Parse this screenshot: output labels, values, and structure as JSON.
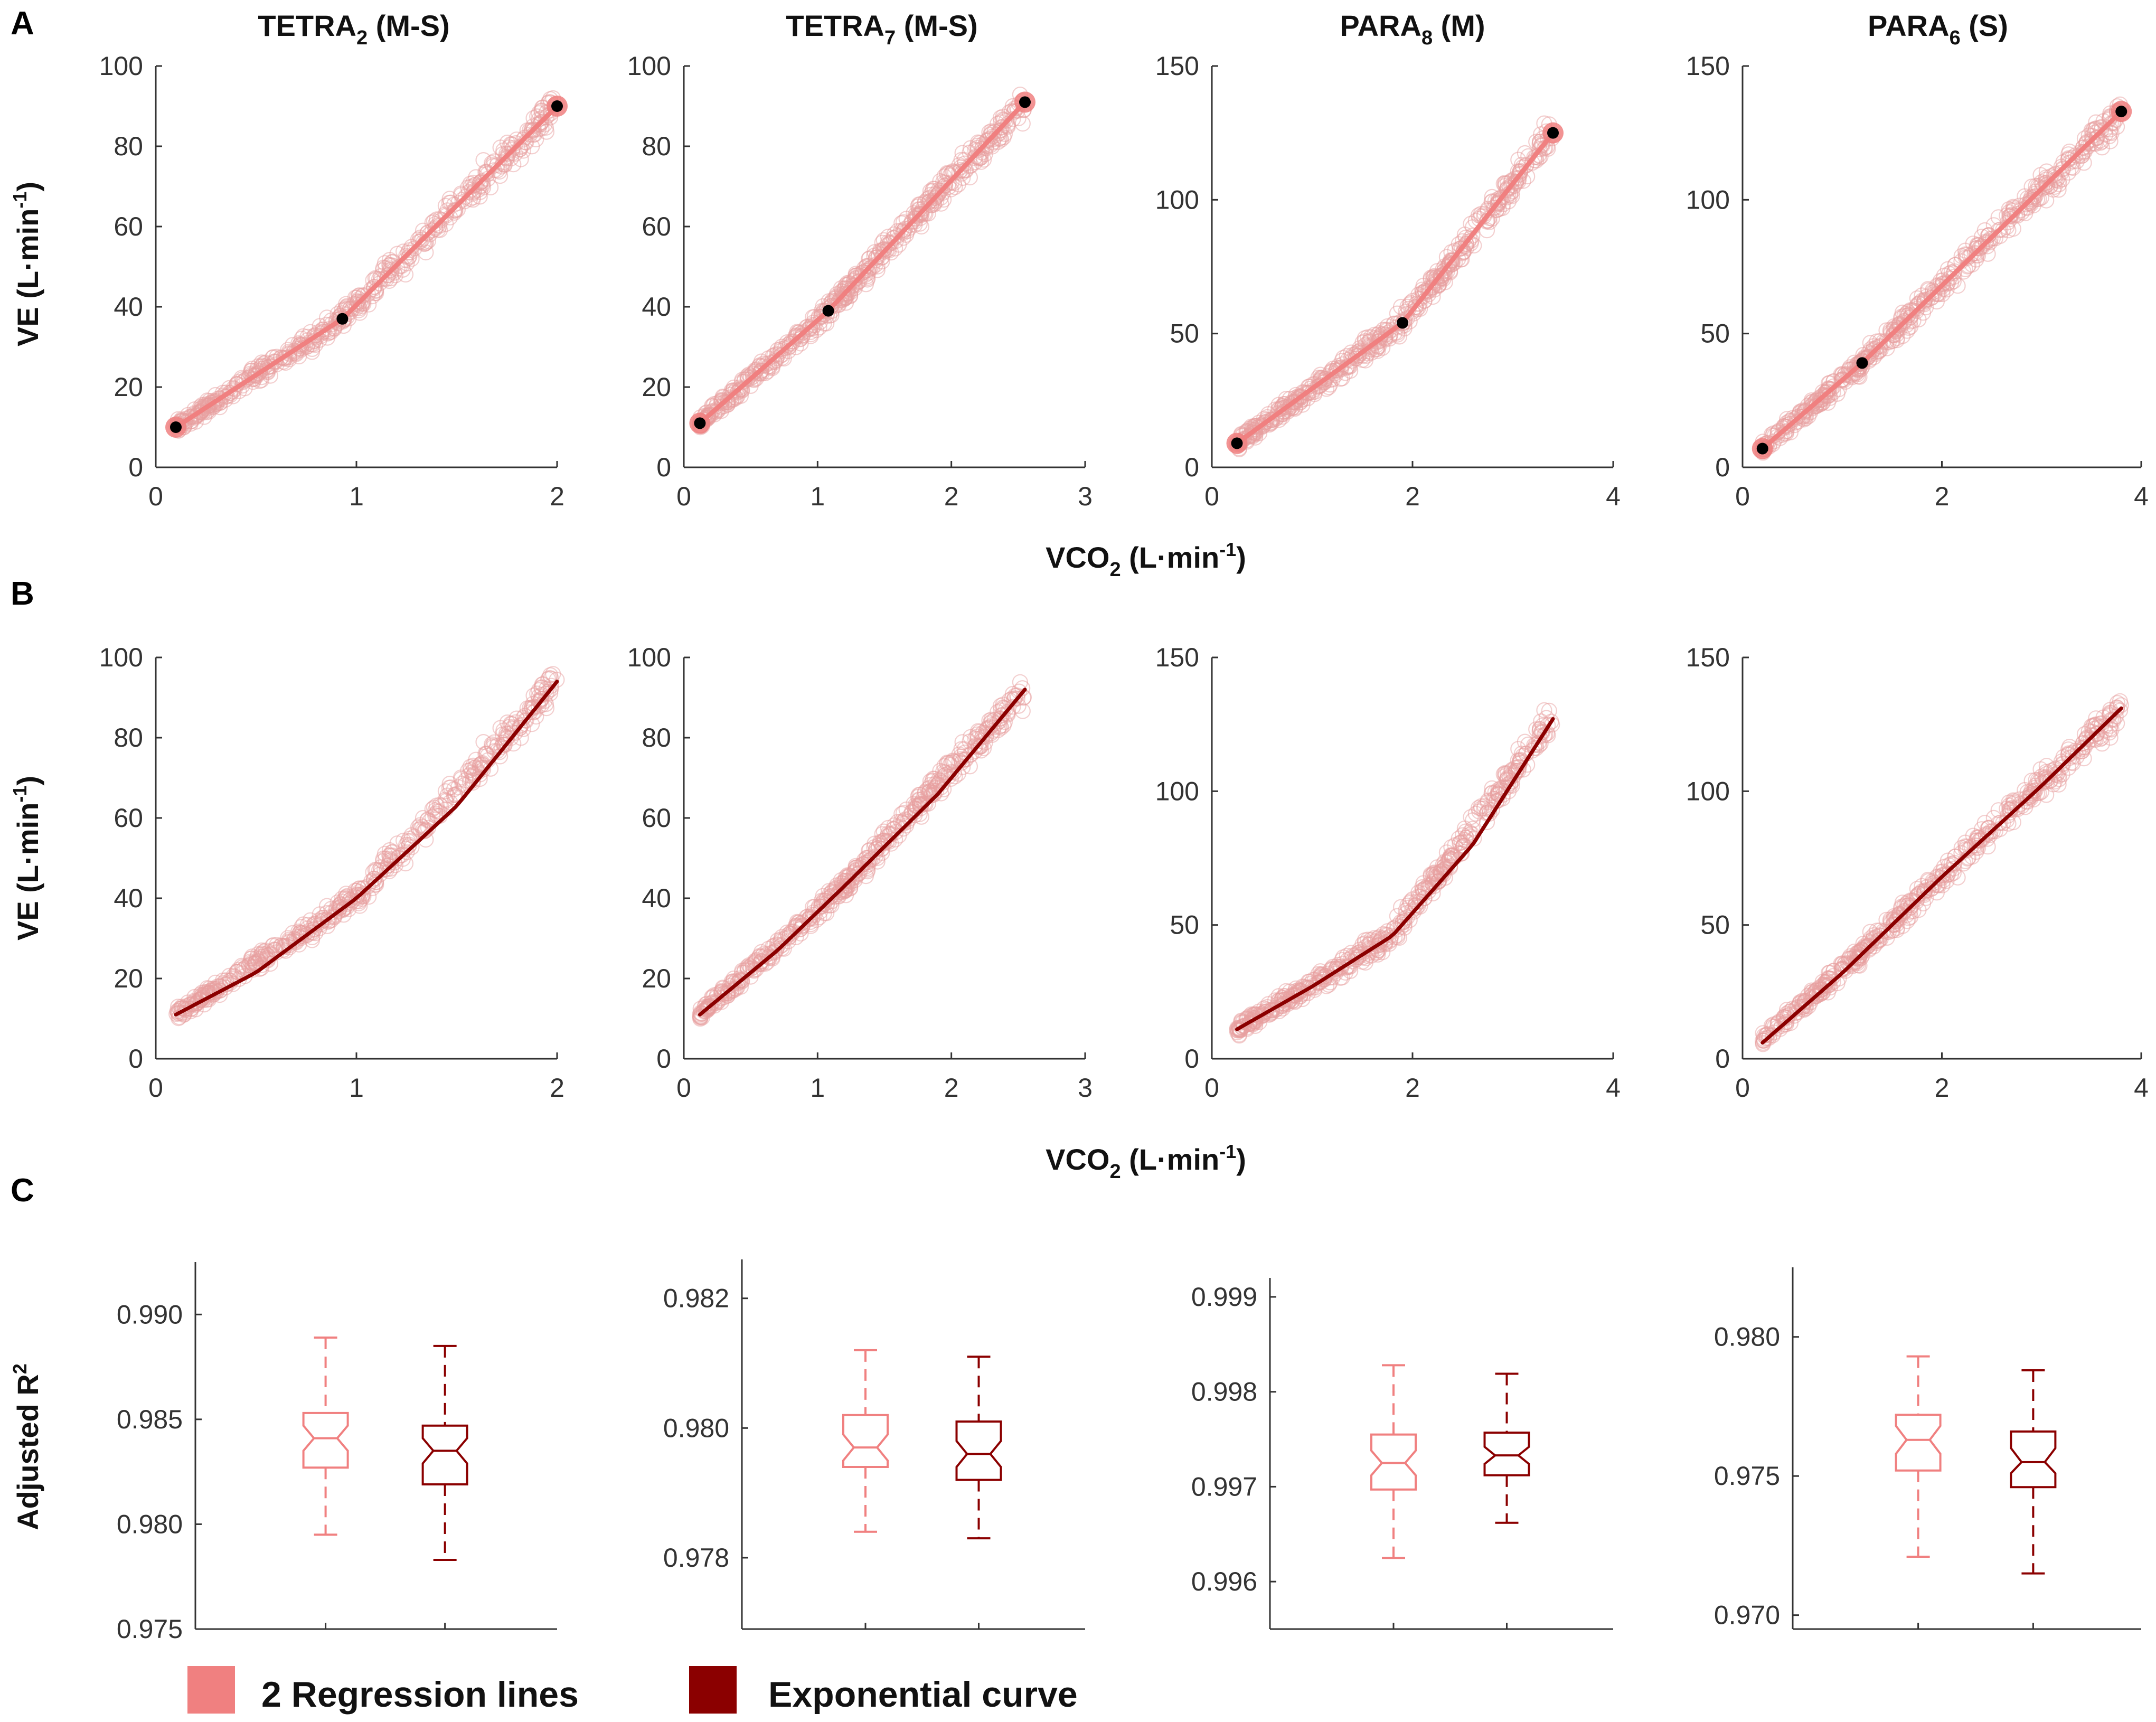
{
  "panel_letters": [
    "A",
    "B",
    "C"
  ],
  "subjects": [
    {
      "name": "TETRA",
      "sub": "2",
      "tag": " (M-S)"
    },
    {
      "name": "TETRA",
      "sub": "7",
      "tag": " (M-S)"
    },
    {
      "name": "PARA",
      "sub": "8",
      "tag": " (M)"
    },
    {
      "name": "PARA",
      "sub": "6",
      "tag": " (S)"
    }
  ],
  "labels": {
    "ve_main": "VE (L·min",
    "ve_sup": "-1",
    "ve_close": ")",
    "vco2_main": "VCO",
    "vco2_sub": "2",
    "vco2_rest": " (L·min",
    "vco2_sup": "-1",
    "vco2_close": ")",
    "r2_main": "Adjusted R",
    "r2_sup": "2"
  },
  "legend": [
    {
      "label": "2 Regression lines",
      "color": "#f08080"
    },
    {
      "label": "Exponential curve",
      "color": "#8b0000"
    }
  ],
  "colors": {
    "regression": "#f08080",
    "exponential": "#8b0000",
    "scatter": "#e8a0a0",
    "axis": "#333333",
    "breakpoint": "#000000"
  },
  "chart_data": [
    {
      "type": "scatter",
      "panel": "A",
      "subject": "TETRA2 (M-S)",
      "xlim": [
        0,
        2
      ],
      "ylim": [
        0,
        100
      ],
      "xticks": [
        "0",
        "1",
        "2"
      ],
      "yticks": [
        "0",
        "20",
        "40",
        "60",
        "80",
        "100"
      ],
      "xlabel": "VCO2 (L·min-1)",
      "ylabel": "VE (L·min-1)",
      "cloud": {
        "x_range": [
          0.1,
          2.0
        ],
        "pts": [
          [
            0.1,
            10
          ],
          [
            0.93,
            37
          ],
          [
            2.0,
            90
          ]
        ]
      },
      "regression_lines": [
        [
          [
            0.1,
            10
          ],
          [
            0.93,
            37
          ]
        ],
        [
          [
            0.93,
            37
          ],
          [
            2.0,
            90
          ]
        ]
      ],
      "breakpoints": [
        [
          0.1,
          10
        ],
        [
          0.93,
          37
        ],
        [
          2.0,
          90
        ]
      ]
    },
    {
      "type": "scatter",
      "panel": "A",
      "subject": "TETRA7 (M-S)",
      "xlim": [
        0,
        3
      ],
      "ylim": [
        0,
        100
      ],
      "xticks": [
        "0",
        "1",
        "2",
        "3"
      ],
      "yticks": [
        "0",
        "20",
        "40",
        "60",
        "80",
        "100"
      ],
      "xlabel": "VCO2 (L·min-1)",
      "ylabel": "VE (L·min-1)",
      "cloud": {
        "x_range": [
          0.12,
          2.55
        ],
        "pts": [
          [
            0.12,
            11
          ],
          [
            1.08,
            39
          ],
          [
            2.55,
            91
          ]
        ]
      },
      "regression_lines": [
        [
          [
            0.12,
            11
          ],
          [
            1.08,
            39
          ]
        ],
        [
          [
            1.08,
            39
          ],
          [
            2.55,
            91
          ]
        ]
      ],
      "breakpoints": [
        [
          0.12,
          11
        ],
        [
          1.08,
          39
        ],
        [
          2.55,
          91
        ]
      ]
    },
    {
      "type": "scatter",
      "panel": "A",
      "subject": "PARA8 (M)",
      "xlim": [
        0,
        4
      ],
      "ylim": [
        0,
        150
      ],
      "xticks": [
        "0",
        "2",
        "4"
      ],
      "yticks": [
        "0",
        "50",
        "100",
        "150"
      ],
      "xlabel": "VCO2 (L·min-1)",
      "ylabel": "VE (L·min-1)",
      "cloud": {
        "x_range": [
          0.25,
          3.4
        ],
        "pts": [
          [
            0.25,
            9
          ],
          [
            1.9,
            54
          ],
          [
            3.4,
            125
          ]
        ]
      },
      "regression_lines": [
        [
          [
            0.25,
            9
          ],
          [
            1.9,
            54
          ]
        ],
        [
          [
            1.9,
            54
          ],
          [
            3.4,
            125
          ]
        ]
      ],
      "breakpoints": [
        [
          0.25,
          9
        ],
        [
          1.9,
          54
        ],
        [
          3.4,
          125
        ]
      ]
    },
    {
      "type": "scatter",
      "panel": "A",
      "subject": "PARA6 (S)",
      "xlim": [
        0,
        4
      ],
      "ylim": [
        0,
        150
      ],
      "xticks": [
        "0",
        "2",
        "4"
      ],
      "yticks": [
        "0",
        "50",
        "100",
        "150"
      ],
      "xlabel": "VCO2 (L·min-1)",
      "ylabel": "VE (L·min-1)",
      "cloud": {
        "x_range": [
          0.2,
          3.8
        ],
        "pts": [
          [
            0.2,
            7
          ],
          [
            1.2,
            39
          ],
          [
            3.8,
            133
          ]
        ]
      },
      "regression_lines": [
        [
          [
            0.2,
            7
          ],
          [
            1.2,
            39
          ]
        ],
        [
          [
            1.2,
            39
          ],
          [
            3.8,
            133
          ]
        ]
      ],
      "breakpoints": [
        [
          0.2,
          7
        ],
        [
          1.2,
          39
        ],
        [
          3.8,
          133
        ]
      ]
    },
    {
      "type": "scatter",
      "panel": "B",
      "subject": "TETRA2 (M-S)",
      "xlim": [
        0,
        2
      ],
      "ylim": [
        0,
        100
      ],
      "xticks": [
        "0",
        "1",
        "2"
      ],
      "yticks": [
        "0",
        "20",
        "40",
        "60",
        "80",
        "100"
      ],
      "xlabel": "VCO2 (L·min-1)",
      "ylabel": "VE (L·min-1)",
      "cloud": {
        "x_range": [
          0.1,
          2.0
        ],
        "pts": [
          [
            0.1,
            11
          ],
          [
            1.0,
            40
          ],
          [
            2.0,
            94
          ]
        ]
      },
      "exponential_curve": [
        [
          0.1,
          11
        ],
        [
          0.5,
          21.5
        ],
        [
          1.0,
          40
        ],
        [
          1.5,
          63
        ],
        [
          2.0,
          94
        ]
      ]
    },
    {
      "type": "scatter",
      "panel": "B",
      "subject": "TETRA7 (M-S)",
      "xlim": [
        0,
        3
      ],
      "ylim": [
        0,
        100
      ],
      "xticks": [
        "0",
        "1",
        "2",
        "3"
      ],
      "yticks": [
        "0",
        "20",
        "40",
        "60",
        "80",
        "100"
      ],
      "xlabel": "VCO2 (L·min-1)",
      "ylabel": "VE (L·min-1)",
      "cloud": {
        "x_range": [
          0.12,
          2.55
        ],
        "pts": [
          [
            0.12,
            11
          ],
          [
            1.2,
            43
          ],
          [
            2.55,
            92
          ]
        ]
      },
      "exponential_curve": [
        [
          0.12,
          11
        ],
        [
          0.7,
          27
        ],
        [
          1.2,
          43
        ],
        [
          1.9,
          66
        ],
        [
          2.55,
          92
        ]
      ]
    },
    {
      "type": "scatter",
      "panel": "B",
      "subject": "PARA8 (M)",
      "xlim": [
        0,
        4
      ],
      "ylim": [
        0,
        150
      ],
      "xticks": [
        "0",
        "2",
        "4"
      ],
      "yticks": [
        "0",
        "50",
        "100",
        "150"
      ],
      "xlabel": "VCO2 (L·min-1)",
      "ylabel": "VE (L·min-1)",
      "cloud": {
        "x_range": [
          0.25,
          3.4
        ],
        "pts": [
          [
            0.25,
            11
          ],
          [
            1.8,
            46
          ],
          [
            3.4,
            127
          ]
        ]
      },
      "exponential_curve": [
        [
          0.25,
          11
        ],
        [
          1.0,
          27
        ],
        [
          1.8,
          46
        ],
        [
          2.6,
          80
        ],
        [
          3.4,
          127
        ]
      ]
    },
    {
      "type": "scatter",
      "panel": "B",
      "subject": "PARA6 (S)",
      "xlim": [
        0,
        4
      ],
      "ylim": [
        0,
        150
      ],
      "xticks": [
        "0",
        "2",
        "4"
      ],
      "yticks": [
        "0",
        "50",
        "100",
        "150"
      ],
      "xlabel": "VCO2 (L·min-1)",
      "ylabel": "VE (L·min-1)",
      "cloud": {
        "x_range": [
          0.2,
          3.8
        ],
        "pts": [
          [
            0.2,
            7
          ],
          [
            1.2,
            40
          ],
          [
            2.4,
            82
          ],
          [
            3.8,
            131
          ]
        ]
      },
      "exponential_curve": [
        [
          0.2,
          6
        ],
        [
          1.0,
          32
        ],
        [
          2.0,
          68
        ],
        [
          3.0,
          102
        ],
        [
          3.8,
          131
        ]
      ]
    },
    {
      "type": "box",
      "panel": "C",
      "subject": "TETRA2 (M-S)",
      "ylim": [
        0.975,
        0.9925
      ],
      "yticks": [
        "0.975",
        "0.980",
        "0.985",
        "0.990"
      ],
      "tick_values": [
        0.975,
        0.98,
        0.985,
        0.99
      ],
      "ylabel": "Adjusted R2",
      "boxes": [
        {
          "series": "2 Regression lines",
          "whisker_low": 0.9795,
          "q1": 0.9827,
          "median": 0.9841,
          "q3": 0.9853,
          "whisker_high": 0.9889,
          "notch": [
            0.9835,
            0.9847
          ]
        },
        {
          "series": "Exponential curve",
          "whisker_low": 0.9783,
          "q1": 0.9819,
          "median": 0.9835,
          "q3": 0.9847,
          "whisker_high": 0.9885,
          "notch": [
            0.9829,
            0.9841
          ]
        }
      ]
    },
    {
      "type": "box",
      "panel": "C",
      "subject": "TETRA7 (M-S)",
      "ylim": [
        0.9769,
        0.9826
      ],
      "yticks": [
        "0.978",
        "0.980",
        "0.982"
      ],
      "tick_values": [
        0.978,
        0.98,
        0.982
      ],
      "ylabel": "Adjusted R2",
      "boxes": [
        {
          "series": "2 Regression lines",
          "whisker_low": 0.9784,
          "q1": 0.9794,
          "median": 0.9797,
          "q3": 0.9802,
          "whisker_high": 0.9812,
          "notch": [
            0.9795,
            0.9799
          ]
        },
        {
          "series": "Exponential curve",
          "whisker_low": 0.9783,
          "q1": 0.9792,
          "median": 0.9796,
          "q3": 0.9801,
          "whisker_high": 0.9811,
          "notch": [
            0.9794,
            0.9798
          ]
        }
      ]
    },
    {
      "type": "box",
      "panel": "C",
      "subject": "PARA8 (M)",
      "ylim": [
        0.9955,
        0.9992
      ],
      "yticks": [
        "0.996",
        "0.997",
        "0.998",
        "0.999"
      ],
      "tick_values": [
        0.996,
        0.997,
        0.998,
        0.999
      ],
      "ylabel": "Adjusted R2",
      "boxes": [
        {
          "series": "2 Regression lines",
          "whisker_low": 0.99625,
          "q1": 0.99697,
          "median": 0.99725,
          "q3": 0.99755,
          "whisker_high": 0.99828,
          "notch": [
            0.99712,
            0.99738
          ]
        },
        {
          "series": "Exponential curve",
          "whisker_low": 0.99662,
          "q1": 0.99712,
          "median": 0.99733,
          "q3": 0.99757,
          "whisker_high": 0.99819,
          "notch": [
            0.99724,
            0.99742
          ]
        }
      ]
    },
    {
      "type": "box",
      "panel": "C",
      "subject": "PARA6 (S)",
      "ylim": [
        0.9695,
        0.9825
      ],
      "yticks": [
        "0.970",
        "0.975",
        "0.980"
      ],
      "tick_values": [
        0.97,
        0.975,
        0.98
      ],
      "ylabel": "Adjusted R2",
      "boxes": [
        {
          "series": "2 Regression lines",
          "whisker_low": 0.9721,
          "q1": 0.9752,
          "median": 0.9763,
          "q3": 0.9772,
          "whisker_high": 0.9793,
          "notch": [
            0.9758,
            0.9768
          ]
        },
        {
          "series": "Exponential curve",
          "whisker_low": 0.9715,
          "q1": 0.9746,
          "median": 0.9755,
          "q3": 0.9766,
          "whisker_high": 0.9788,
          "notch": [
            0.9751,
            0.976
          ]
        }
      ]
    }
  ]
}
